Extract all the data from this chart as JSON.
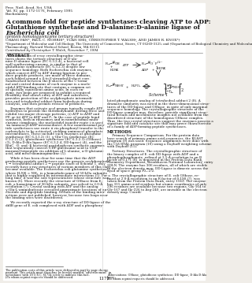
{
  "header_line1": "Proc. Natl. Acad. Sci. USA",
  "header_line2": "Vol. 92, pp. 1172-1176, February 1995",
  "header_line3": "Biochemistry",
  "title_line1": "A common fold for peptide synthetases cleaving ATP to ADP:",
  "title_line2": "Glutathione synthetase and D-alanine:D-alanine ligase of",
  "title_line3": "Escherichia coli",
  "subtitle": "(protein homology/enzyme tertiary structure)",
  "authors": "CHANG FAN*, PAUL C. MORRIS*, YUAN SHI‡, CHRISTOPHER T. WALSH†, AND JAMES R. KNOX*†",
  "affil1": "*Department of Molecular and Cell Biology, The University of Connecticut, Storrs, CT 06269-3125; and †Department of Biological Chemistry and Molecular",
  "affil2": "Pharmacology, Harvard Medical School, Boston, MA 02115",
  "contributed": "Contributed by Christopher T. Walsh, November 7, 1994",
  "abstract_title": "ABSTRACT",
  "abstract_text": "     Examination of x-ray crystallographic structures shows the tertiary structure of D-alanine:D-alanine ligase (EC 6.3.2.4), a bacterial cell wall synthesizing enzyme, is similar to that of glutathione synthetase (EC 6.3.2.3) despite low sequence homology. Both Escherichia coli enzymes, which convert ATP to ADP during ligation to produce peptide products, are made of three domains, each folded around a 4-to 6-stranded β-sheet core. Sandwiched between the β-sheets of the C-terminal and central domains of each enzyme is a nucleotidyl ATP-binding site that contains a common set of spatially equivalent amino acids. In each enzyme, two loops are proposed to exhibit a required flexibility that allows entry of ATP and substrates, provides protection of the acylphosphate intermediates and tetrahedral adduct from hydrolysis during catalysis, and then permits release of products.",
  "body_para1": "     Enzymes that activate acyl groups typically couple ATP hydrolysis to provide the thermodynamic driving force and exhibit two major cleavage patterns, (i) ATP to AMP and PPᵢ or (ii) ATP to ADP and Pᵢ. In the case of peptide bond synthesis, both in ribosomes and in nonribosomal multienzyme complexes, the nucleotidyl transfer route i is used via aminoacyl-AMP intermediates. A few nonribosomal peptide synthetases use route ii via phosphoryl transfer to the carboxylate to be activated, yielding aminoacyl phosphate intermediates. These include such enzymes as glutamine synthetase (EC 6.3.1.2) (1), γ-Glu-Cys synthetase (EC 6.3.2.2) (2), glutathione synthetase (EC 6.3.2.3) (Gase) (3), D-Ala:D-Ala ligase (EC 6.3.2.4, DD-ligase) (4), and the BluC, -D, and -E bacterial peptidoglycan synthetic enzymes that sequentially convert UDP-glucosamic acid to UDP-muramyl-tripeptide via addition of L-alanine, α-D-glutamic acid, and meso-diaminopimeline (5).",
  "body_para2": "     While it has been clear for some time that the ADP-producing peptide synthetases use the generic acylphosphate 1 → tetrahedral adduct 2 → peptide route of Scheme 1, only recently have x-ray structures of various members of this class become available. The Escherichia coli glutamine synthetase, where H₂NK = NH₃, is a homododecamer of 50-kDa subunits that is highly regulated by intermediate interactions (5). For a long time, it was the sole representative whose structure was known (6). More recently the structure of GShase from E. coli, a homotrimer of 36-kDa subunits, was solved to 2.0-Å resolution (7). Crystal soaking with ATP and the analog γ-Glu-L-aminobutyrate revealed approximate locations of nucleotide and dipeptide binding. Details of the binding interactions were not published, however, because two loops near the binding sites were disordered.",
  "body_para3": "     We recently reported the x-ray structure of DD-ligase of the ddlB gene of E. coli complexed with ADP and a phosphory-",
  "methods_title": "METHODS",
  "methods_para1": "     Primary Sequence Comparison. For the protein data base search of primary amino acid sequences, the BLAST program (9) was used. Sequence alignments were done with the CLUSTAL program (10) using a Dayhoff weighting scheme with Dayhoff (11).",
  "methods_para2": "     Tertiary Structures. The crystallographic structure of the binary complex of E. coli DD-ligase with ADP and a phosphophosphonate, refined at 2.5-Å resolution to an R factor of 0.171 (8), is deposited in the Protein Data Bank, Chemistry Department, Brookhaven National Laboratory, entry 2DLN. The enzyme has 306 residues, all of which are visible in the electron density map. DD-Ligase is dimeric across the dyad of space group P2₂:2:2.",
  "right_col_para": "     The crystallographic structure of E. coli GShase, refined at 2.0-Å resolution to an R factor of 0.190 (7), was taken from the Protein Data Bank, entry 1GLT. The enzyme has 315 amino acid residues but atomic coordinates of only 296 residues are available because two regions, Gly-164 to Gly-167 and Ile-226 to Arg-240, are invisible in the electron density map. Coordi-",
  "footnote1": "The publication costs of this article were defrayed in part by page charge payment. This article must therefore be hereby marked “advertisement” in accordance with 18 U.S.C. §1734 solely to indicate this fact.",
  "footnote2": "‡To whom reprint requests should be addressed.",
  "page_number": "1172",
  "scheme_label": "Scheme 1",
  "right_col_para2": "lated phosphonate analog of tetrahedral adduct 2 (8). A dramatic similarity was noted in the three-dimensional structures of the DD-ligase and GShase, in spite of only marginal sequence homology. The crystallographic structure of the DD-ligase complex may, therefore, provide significant structural details and mechanistic insights not available from the disordered structure of the homologous GShase complex. Thus, the two crystal structures suggest the enzymes possess a signature fold and catalytic site that may prove characteristic of a family of ADP-forming peptide synthetases.",
  "bg_color": "#f5f5f0",
  "text_color": "#1a1a1a",
  "title_color": "#000000"
}
